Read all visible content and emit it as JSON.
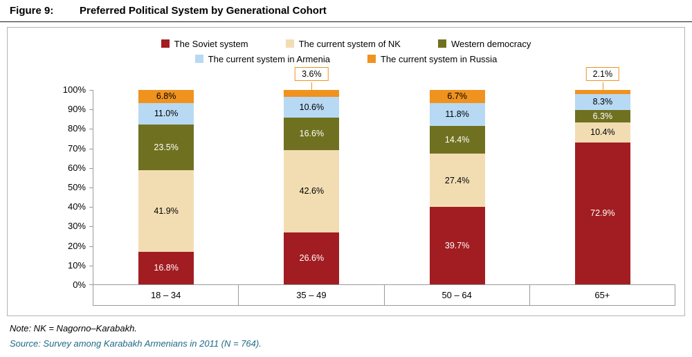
{
  "figure": {
    "label": "Figure 9:",
    "title": "Preferred Political System by Generational Cohort"
  },
  "notes": {
    "note": "Note: NK = Nagorno–Karabakh.",
    "source": "Source: Survey among Karabakh Armenians in 2011 (N = 764)."
  },
  "chart_data": {
    "type": "bar",
    "subtype": "stacked-percentage",
    "title": "Preferred Political System by Generational Cohort",
    "categories": [
      "18 – 34",
      "35 – 49",
      "50 – 64",
      "65+"
    ],
    "unit": "%",
    "ylim": [
      0,
      100
    ],
    "y_ticks": [
      "0%",
      "10%",
      "20%",
      "30%",
      "40%",
      "50%",
      "60%",
      "70%",
      "80%",
      "90%",
      "100%"
    ],
    "grid": false,
    "legend_position": "top",
    "stack_order": "bottom_to_top",
    "series": [
      {
        "name": "The Soviet system",
        "color": "#a11d21",
        "label_color": "#ffffff",
        "values": [
          16.8,
          26.6,
          39.7,
          72.9
        ],
        "callout": [
          false,
          false,
          false,
          false
        ]
      },
      {
        "name": "The current system of NK",
        "color": "#f2ddb3",
        "label_color": "#000000",
        "values": [
          41.9,
          42.6,
          27.4,
          10.4
        ],
        "callout": [
          false,
          false,
          false,
          false
        ]
      },
      {
        "name": "Western democracy",
        "color": "#6f7120",
        "label_color": "#ffffff",
        "values": [
          23.5,
          16.6,
          14.4,
          6.3
        ],
        "callout": [
          false,
          false,
          false,
          false
        ]
      },
      {
        "name": "The current system in Armenia",
        "color": "#b8d9f3",
        "label_color": "#000000",
        "values": [
          11.0,
          10.6,
          11.8,
          8.3
        ],
        "callout": [
          false,
          false,
          false,
          false
        ]
      },
      {
        "name": "The current system in Russia",
        "color": "#f0921e",
        "label_color": "#000000",
        "values": [
          6.8,
          3.6,
          6.7,
          2.1
        ],
        "callout": [
          false,
          true,
          false,
          true
        ]
      }
    ],
    "legend_rows": [
      [
        "The Soviet system",
        "The current system of NK",
        "Western democracy"
      ],
      [
        "The current system in Armenia",
        "The current system in Russia"
      ]
    ],
    "callout_border_color": "#f0921e"
  }
}
